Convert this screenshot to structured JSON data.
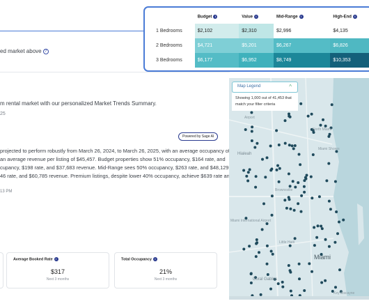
{
  "top": {
    "market_text": "ed market above"
  },
  "table": {
    "headers": [
      "Budget",
      "Value",
      "Mid-Range",
      "High-End"
    ],
    "rows": [
      {
        "label": "1 Bedrooms",
        "values": [
          "$2,102",
          "$2,310",
          "$2,996",
          "$4,135"
        ]
      },
      {
        "label": "2 Bedrooms",
        "values": [
          "$4,721",
          "$5,201",
          "$6,267",
          "$6,826"
        ]
      },
      {
        "label": "3 Bedrooms",
        "values": [
          "$6,177",
          "$6,952",
          "$8,749",
          "$10,353"
        ]
      }
    ],
    "colors": [
      [
        "#d2ecec",
        "#bfe6e6",
        "#ffffff",
        "#ffffff"
      ],
      [
        "#7fcfd6",
        "#7fcfd6",
        "#54bcc6",
        "#4fb8c2"
      ],
      [
        "#54bcc6",
        "#3fb1bc",
        "#1c8799",
        "#14607a"
      ]
    ]
  },
  "report": {
    "summary": "m rental market with our personalized Market Trends Summary.",
    "date_fragment": "25",
    "powered_by": "Powered by Sage AI",
    "lines": [
      "projected to perform robustly from March 26, 2024, to March 26, 2025, with an average occupancy of",
      "an average revenue per listing of $45,457. Budget properties show 51% occupancy, $164 rate, and",
      "cupancy, $198 rate, and $37,683 revenue. Mid-Range sees 50% occupancy, $263 rate, and $48,129",
      "46 rate, and $60,785 revenue. Premium listings, despite lower 40% occupancy, achieve $639 rate and"
    ],
    "time": "13 PM"
  },
  "cards": [
    {
      "title": "Average Booked Rate",
      "value": "$317",
      "sub": "Next 3 months"
    },
    {
      "title": "Total Occupancy",
      "value": "21%",
      "sub": "Next 3 months"
    }
  ],
  "map": {
    "legend_label": "Map Legend",
    "legend_chevron": "^",
    "showing": "Showing 1,000 out of 41,453 that match your filter criteria",
    "places": [
      "Airport",
      "Hialeah",
      "Miami Shores",
      "North Miami",
      "Brownsville",
      "Miami International Airport",
      "Little Haiti",
      "Miami",
      "Coral Gables",
      "Key Biscayne"
    ]
  }
}
